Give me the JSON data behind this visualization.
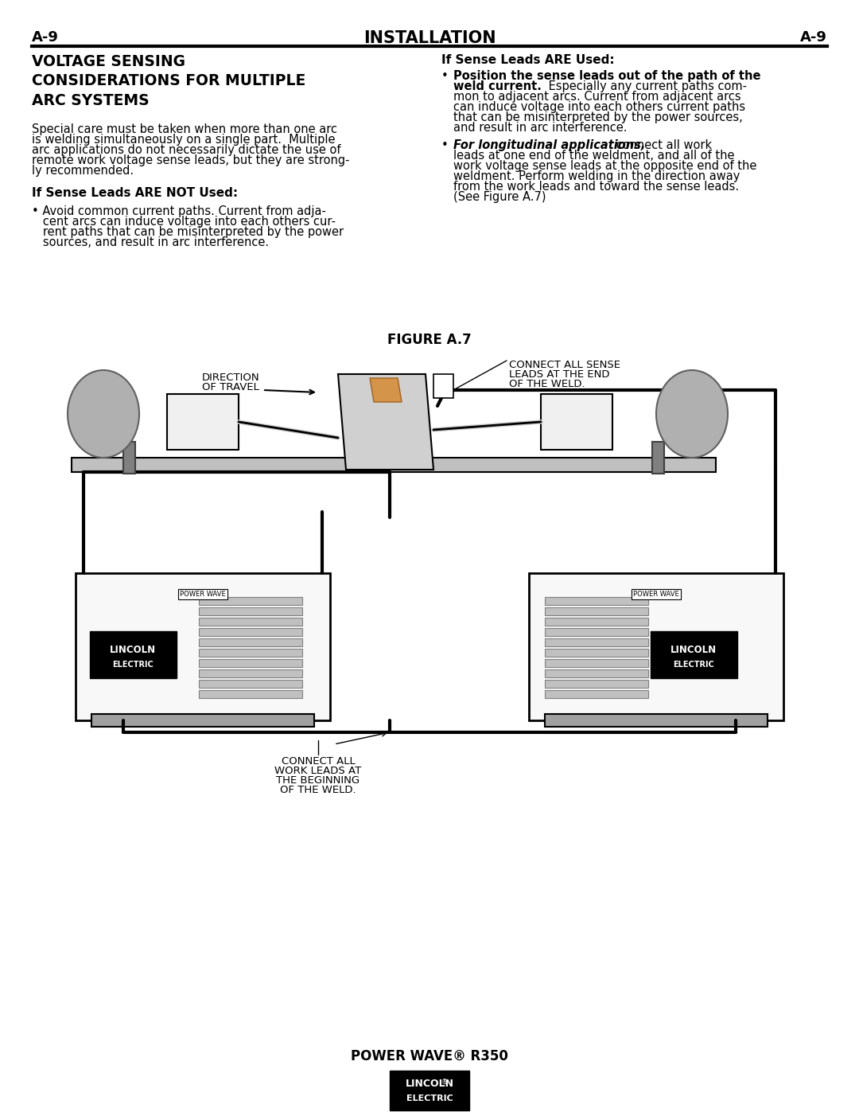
{
  "page_header_left": "A-9",
  "page_header_center": "INSTALLATION",
  "page_header_right": "A-9",
  "section_title": "VOLTAGE SENSING\nCONSIDERATIONS FOR MULTIPLE\nARC SYSTEMS",
  "body_left_col": "Special care must be taken when more than one arc\nis welding simultaneously on a single part.  Multiple\narc applications do not necessarily dictate the use of\nremote work voltage sense leads, but they are strong-\nly recommended.",
  "subhead_left": "If Sense Leads ARE NOT Used:",
  "bullet_left": "• Avoid common current paths. Current from adja-\n   cent arcs can induce voltage into each others cur-\n   rent paths that can be misinterpreted by the power\n   sources, and result in arc interference.",
  "subhead_right": "If Sense Leads ARE Used:",
  "bullet_right_1": "• Position the sense leads out of the path of the\n   weld current. Especially any current paths com-\n   mon to adjacent arcs. Current from adjacent arcs\n   can induce voltage into each others current paths\n   that can be misinterpreted by the power sources,\n   and result in arc interference.",
  "bullet_right_2": "• For longitudinal applications, connect all work\n   leads at one end of the weldment, and all of the\n   work voltage sense leads at the opposite end of the\n   weldment. Perform welding in the direction away\n   from the work leads and toward the sense leads.\n(See Figure A.7)",
  "figure_label": "FIGURE A.7",
  "label_direction": "DIRECTION\nOF TRAVEL",
  "label_sense": "CONNECT ALL SENSE\nLEADS AT THE END\nOF THE WELD.",
  "label_work": "CONNECT ALL\nWORK LEADS AT\nTHE BEGINNING\nOF THE WELD.",
  "footer_text": "POWER WAVE® R350",
  "bg_color": "#ffffff",
  "text_color": "#000000",
  "line_color": "#000000",
  "gray_color": "#808080",
  "light_gray": "#c0c0c0",
  "dark_gray": "#404040"
}
